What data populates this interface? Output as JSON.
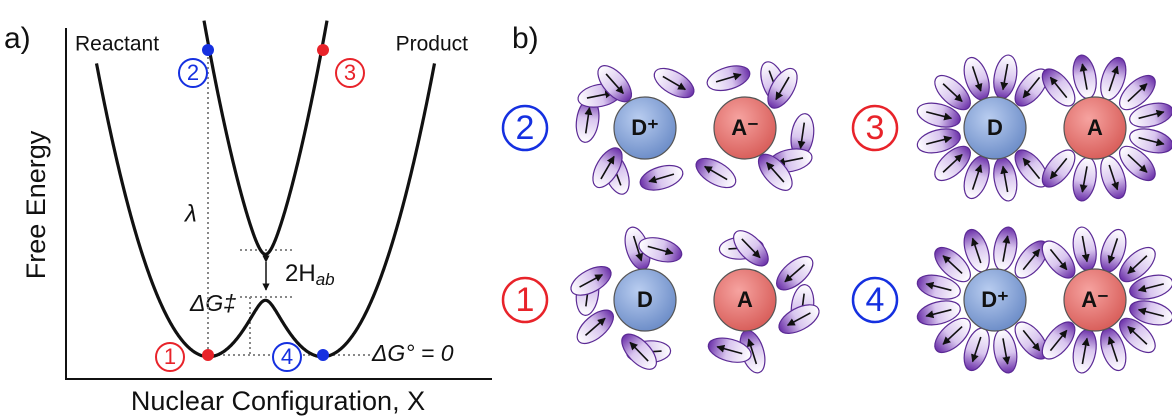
{
  "panel_a": {
    "label": "a)",
    "y_axis_label": "Free Energy",
    "x_axis_label": "Nuclear Configuration, X",
    "reactant_label": "Reactant",
    "product_label": "Product",
    "reorganization_label": "λ",
    "coupling_label": {
      "main": "2H",
      "sub": "ab"
    },
    "activation_label": "ΔG‡",
    "driving_force_label": "ΔG° = 0",
    "point_labels": [
      "1",
      "2",
      "3",
      "4"
    ]
  },
  "panel_b": {
    "label": "b)",
    "states": [
      {
        "number": "2",
        "donor": "D⁺",
        "acceptor": "A⁻"
      },
      {
        "number": "3",
        "donor": "D",
        "acceptor": "A"
      },
      {
        "number": "1",
        "donor": "D",
        "acceptor": "A"
      },
      {
        "number": "4",
        "donor": "D⁺",
        "acceptor": "A⁻"
      }
    ]
  }
}
